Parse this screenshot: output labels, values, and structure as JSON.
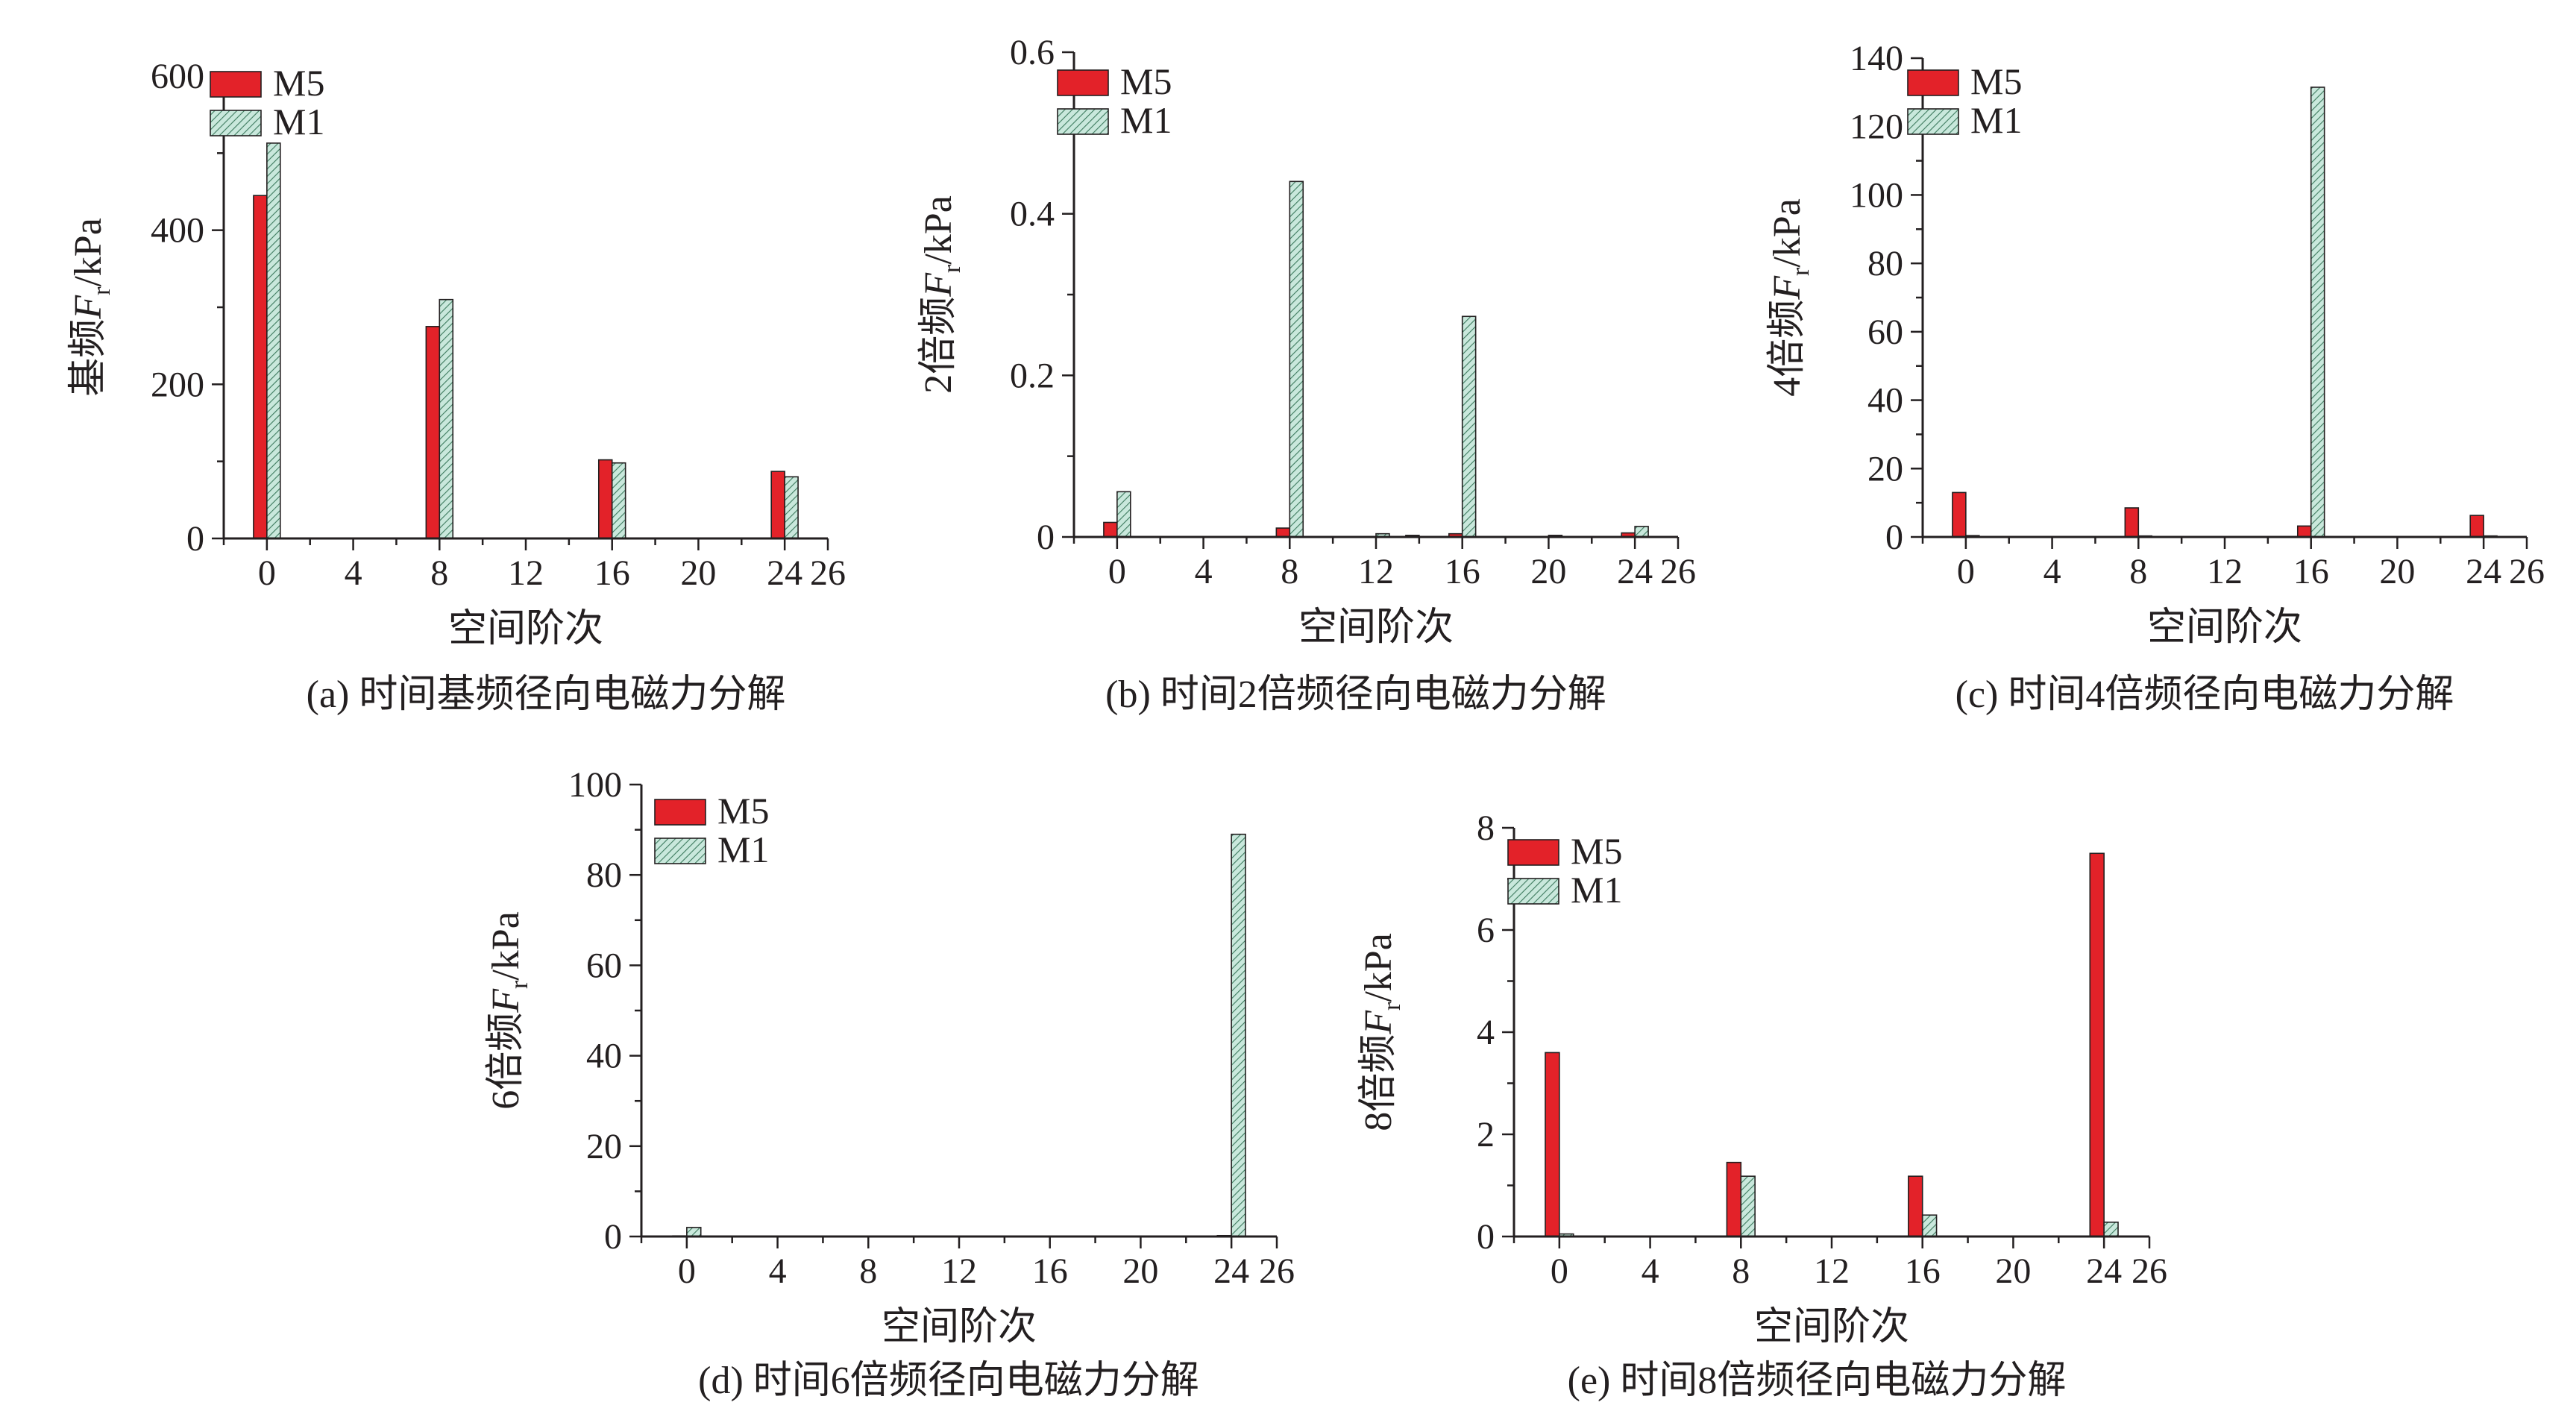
{
  "chart_data": [
    {
      "type": "bar",
      "caption": "(a) 时间基频径向电磁力分解",
      "xlabel": "空间阶次",
      "ylabel": {
        "prefix": "基频",
        "var": "F",
        "sub": "r",
        "unit": "/kPa"
      },
      "xlim": [
        -2,
        26
      ],
      "xticks": [
        0,
        4,
        8,
        12,
        16,
        20,
        24,
        26
      ],
      "ylim": [
        0,
        600
      ],
      "yticks": [
        0,
        200,
        400,
        600
      ],
      "legend": [
        "M5",
        "M1"
      ],
      "series": [
        {
          "name": "M5",
          "x": [
            0,
            8,
            16,
            24
          ],
          "values": [
            445,
            275,
            102,
            87
          ]
        },
        {
          "name": "M1",
          "x": [
            0,
            8,
            16,
            24
          ],
          "values": [
            513,
            310,
            98,
            80
          ]
        }
      ]
    },
    {
      "type": "bar",
      "caption": "(b) 时间2倍频径向电磁力分解",
      "xlabel": "空间阶次",
      "ylabel": {
        "prefix": "2倍频",
        "var": "F",
        "sub": "r",
        "unit": "/kPa"
      },
      "xlim": [
        -2,
        26
      ],
      "xticks": [
        0,
        4,
        8,
        12,
        16,
        20,
        24,
        26
      ],
      "ylim": [
        0,
        0.6
      ],
      "yticks": [
        0,
        0.2,
        0.4,
        0.6
      ],
      "legend": [
        "M5",
        "M1"
      ],
      "series": [
        {
          "name": "M5",
          "x": [
            0,
            8,
            14,
            16,
            24
          ],
          "values": [
            0.018,
            0.011,
            0.002,
            0.004,
            0.005
          ]
        },
        {
          "name": "M1",
          "x": [
            0,
            8,
            12,
            16,
            20,
            24
          ],
          "values": [
            0.056,
            0.44,
            0.004,
            0.273,
            0.002,
            0.013
          ]
        }
      ]
    },
    {
      "type": "bar",
      "caption": "(c) 时间4倍频径向电磁力分解",
      "xlabel": "空间阶次",
      "ylabel": {
        "prefix": "4倍频",
        "var": "F",
        "sub": "r",
        "unit": "/kPa"
      },
      "xlim": [
        -2,
        26
      ],
      "xticks": [
        0,
        4,
        8,
        12,
        16,
        20,
        24,
        26
      ],
      "ylim": [
        0,
        140
      ],
      "yticks": [
        0,
        20,
        40,
        60,
        80,
        100,
        120,
        140
      ],
      "legend": [
        "M5",
        "M1"
      ],
      "series": [
        {
          "name": "M5",
          "x": [
            0,
            8,
            16,
            24
          ],
          "values": [
            13,
            8.5,
            3.2,
            6.3
          ]
        },
        {
          "name": "M1",
          "x": [
            0,
            8,
            16,
            24
          ],
          "values": [
            0.4,
            0.3,
            131.5,
            0.3
          ]
        }
      ]
    },
    {
      "type": "bar",
      "caption": "(d) 时间6倍频径向电磁力分解",
      "xlabel": "空间阶次",
      "ylabel": {
        "prefix": "6倍频",
        "var": "F",
        "sub": "r",
        "unit": "/kPa"
      },
      "xlim": [
        -2,
        26
      ],
      "xticks": [
        0,
        4,
        8,
        12,
        16,
        20,
        24,
        26
      ],
      "ylim": [
        0,
        100
      ],
      "yticks": [
        0,
        20,
        40,
        60,
        80,
        100
      ],
      "legend": [
        "M5",
        "M1"
      ],
      "series": [
        {
          "name": "M5",
          "x": [
            0,
            24
          ],
          "values": [
            0.1,
            0.2
          ]
        },
        {
          "name": "M1",
          "x": [
            0,
            24
          ],
          "values": [
            2,
            89
          ]
        }
      ]
    },
    {
      "type": "bar",
      "caption": "(e) 时间8倍频径向电磁力分解",
      "xlabel": "空间阶次",
      "ylabel": {
        "prefix": "8倍频",
        "var": "F",
        "sub": "r",
        "unit": "/kPa"
      },
      "xlim": [
        -2,
        26
      ],
      "xticks": [
        0,
        4,
        8,
        12,
        16,
        20,
        24,
        26
      ],
      "ylim": [
        0,
        8
      ],
      "yticks": [
        0,
        2,
        4,
        6,
        8
      ],
      "legend": [
        "M5",
        "M1"
      ],
      "series": [
        {
          "name": "M5",
          "x": [
            0,
            8,
            16,
            24
          ],
          "values": [
            3.6,
            1.45,
            1.18,
            7.5
          ]
        },
        {
          "name": "M1",
          "x": [
            0,
            8,
            16,
            24
          ],
          "values": [
            0.05,
            1.18,
            0.42,
            0.28
          ]
        }
      ]
    }
  ],
  "colors": {
    "M5": "#e32229",
    "M1_fill": "#c9e8dc",
    "M1_hatch": "#3d7a5e",
    "axis": "#231f20"
  }
}
